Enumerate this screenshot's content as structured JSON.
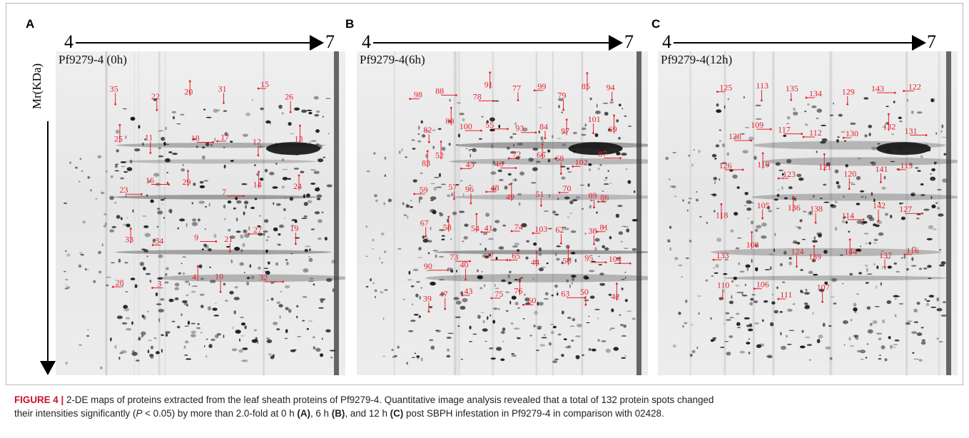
{
  "figure": {
    "panels": [
      {
        "letter": "A",
        "ph_start": "4",
        "ph_end": "7",
        "gel_title": "Pf9279-4 (0h)",
        "spots": [
          "35",
          "22",
          "20",
          "31",
          "15",
          "26",
          "25",
          "11",
          "18",
          "17",
          "12",
          "13",
          "23",
          "16",
          "29",
          "7",
          "14",
          "24",
          "33",
          "34",
          "9",
          "21",
          "27",
          "19",
          "28",
          "3",
          "4",
          "10",
          "32"
        ]
      },
      {
        "letter": "B",
        "ph_start": "4",
        "ph_end": "7",
        "gel_title": "Pf9279-4(6h)",
        "spots": [
          "98",
          "88",
          "78",
          "91",
          "77",
          "99",
          "79",
          "85",
          "94",
          "82",
          "80",
          "100",
          "55",
          "93",
          "84",
          "97",
          "101",
          "69",
          "83",
          "52",
          "45",
          "46",
          "72",
          "66",
          "68",
          "102",
          "87",
          "59",
          "57",
          "96",
          "48",
          "49",
          "51",
          "70",
          "89",
          "86",
          "67",
          "58",
          "54",
          "41",
          "74",
          "103",
          "62",
          "38",
          "81",
          "90",
          "73",
          "40",
          "37",
          "65",
          "44",
          "56",
          "95",
          "104",
          "39",
          "47",
          "43",
          "75",
          "76",
          "60",
          "63",
          "50",
          "42"
        ]
      },
      {
        "letter": "C",
        "ph_start": "4",
        "ph_end": "7",
        "gel_title": "Pf9279-4(12h)",
        "spots": [
          "125",
          "113",
          "135",
          "134",
          "129",
          "143",
          "122",
          "128",
          "109",
          "117",
          "112",
          "130",
          "132",
          "131",
          "126",
          "119",
          "123",
          "121",
          "120",
          "141",
          "115",
          "118",
          "105",
          "136",
          "138",
          "114",
          "142",
          "127",
          "133",
          "108",
          "124",
          "139",
          "144",
          "137",
          "116",
          "110",
          "106",
          "111",
          "107"
        ]
      }
    ],
    "mr_axis_label": "Mr(KDa)",
    "caption": {
      "label": "FIGURE 4 |",
      "line1": " 2-DE maps of proteins extracted from the leaf sheath proteins of Pf9279-4. Quantitative image analysis revealed that a total of 132 protein spots changed",
      "line2_a": "their intensities significantly (",
      "p": "P",
      "line2_b": " < 0.05) by more than 2.0-fold at 0 h ",
      "A": "(A)",
      "line2_c": ", 6 h ",
      "B": "(B)",
      "line2_d": ", and 12 h ",
      "C": "(C)",
      "line2_e": " post SBPH infestation in Pf9279-4 in comparison with 02428."
    },
    "colors": {
      "annotation_red": "#e8202a",
      "spot_dark": "#111111",
      "caption_label": "#c8102e"
    }
  }
}
